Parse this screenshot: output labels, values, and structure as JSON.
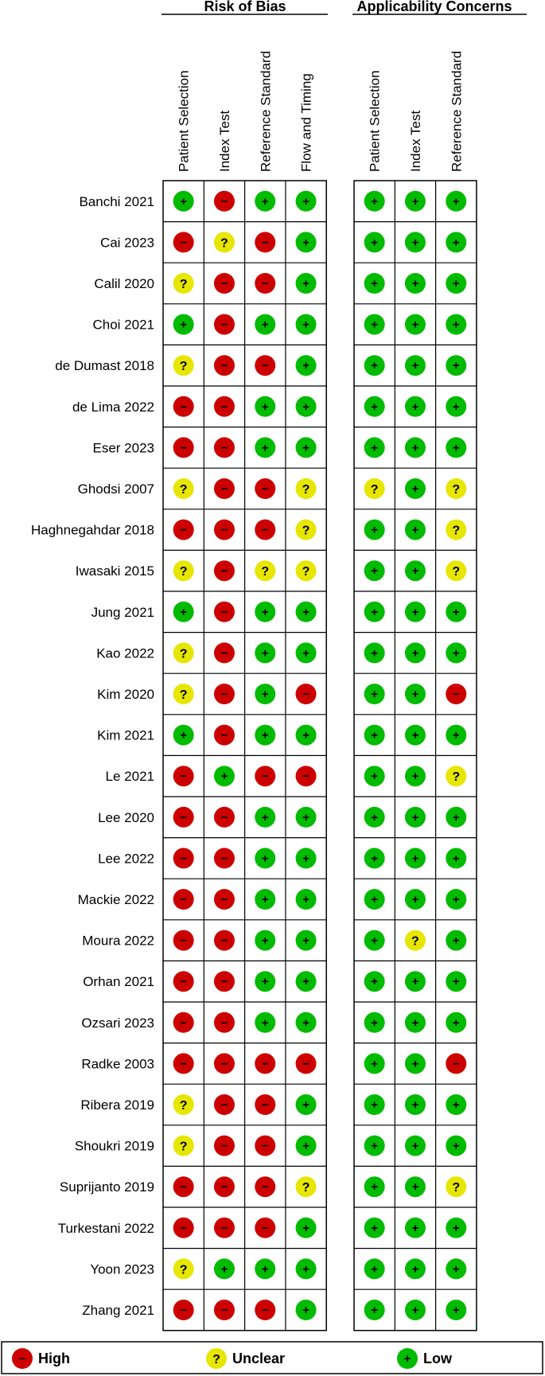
{
  "chart_data": {
    "type": "table",
    "groups": [
      {
        "title": "Risk of Bias",
        "columns": [
          "Patient Selection",
          "Index Test",
          "Reference Standard",
          "Flow and Timing"
        ]
      },
      {
        "title": "Applicability Concerns",
        "columns": [
          "Patient Selection",
          "Index Test",
          "Reference Standard"
        ]
      }
    ],
    "rows": [
      {
        "study": "Banchi 2021",
        "rob": [
          "low",
          "high",
          "low",
          "low"
        ],
        "app": [
          "low",
          "low",
          "low"
        ]
      },
      {
        "study": "Cai 2023",
        "rob": [
          "high",
          "unclear",
          "high",
          "low"
        ],
        "app": [
          "low",
          "low",
          "low"
        ]
      },
      {
        "study": "Calil 2020",
        "rob": [
          "unclear",
          "high",
          "high",
          "low"
        ],
        "app": [
          "low",
          "low",
          "low"
        ]
      },
      {
        "study": "Choi 2021",
        "rob": [
          "low",
          "high",
          "low",
          "low"
        ],
        "app": [
          "low",
          "low",
          "low"
        ]
      },
      {
        "study": "de Dumast 2018",
        "rob": [
          "unclear",
          "high",
          "high",
          "low"
        ],
        "app": [
          "low",
          "low",
          "low"
        ]
      },
      {
        "study": "de Lima 2022",
        "rob": [
          "high",
          "high",
          "low",
          "low"
        ],
        "app": [
          "low",
          "low",
          "low"
        ]
      },
      {
        "study": "Eser 2023",
        "rob": [
          "high",
          "high",
          "low",
          "low"
        ],
        "app": [
          "low",
          "low",
          "low"
        ]
      },
      {
        "study": "Ghodsi 2007",
        "rob": [
          "unclear",
          "high",
          "high",
          "unclear"
        ],
        "app": [
          "unclear",
          "low",
          "unclear"
        ]
      },
      {
        "study": "Haghnegahdar 2018",
        "rob": [
          "high",
          "high",
          "high",
          "unclear"
        ],
        "app": [
          "low",
          "low",
          "unclear"
        ]
      },
      {
        "study": "Iwasaki 2015",
        "rob": [
          "unclear",
          "high",
          "unclear",
          "unclear"
        ],
        "app": [
          "low",
          "low",
          "unclear"
        ]
      },
      {
        "study": "Jung 2021",
        "rob": [
          "low",
          "high",
          "low",
          "low"
        ],
        "app": [
          "low",
          "low",
          "low"
        ]
      },
      {
        "study": "Kao 2022",
        "rob": [
          "unclear",
          "high",
          "low",
          "low"
        ],
        "app": [
          "low",
          "low",
          "low"
        ]
      },
      {
        "study": "Kim 2020",
        "rob": [
          "unclear",
          "high",
          "low",
          "high"
        ],
        "app": [
          "low",
          "low",
          "high"
        ]
      },
      {
        "study": "Kim 2021",
        "rob": [
          "low",
          "high",
          "low",
          "low"
        ],
        "app": [
          "low",
          "low",
          "low"
        ]
      },
      {
        "study": "Le 2021",
        "rob": [
          "high",
          "low",
          "high",
          "high"
        ],
        "app": [
          "low",
          "low",
          "unclear"
        ]
      },
      {
        "study": "Lee 2020",
        "rob": [
          "high",
          "high",
          "low",
          "low"
        ],
        "app": [
          "low",
          "low",
          "low"
        ]
      },
      {
        "study": "Lee 2022",
        "rob": [
          "high",
          "high",
          "low",
          "low"
        ],
        "app": [
          "low",
          "low",
          "low"
        ]
      },
      {
        "study": "Mackie 2022",
        "rob": [
          "high",
          "high",
          "low",
          "low"
        ],
        "app": [
          "low",
          "low",
          "low"
        ]
      },
      {
        "study": "Moura 2022",
        "rob": [
          "high",
          "high",
          "low",
          "low"
        ],
        "app": [
          "low",
          "unclear",
          "low"
        ]
      },
      {
        "study": "Orhan 2021",
        "rob": [
          "high",
          "high",
          "low",
          "low"
        ],
        "app": [
          "low",
          "low",
          "low"
        ]
      },
      {
        "study": "Ozsari 2023",
        "rob": [
          "high",
          "high",
          "low",
          "low"
        ],
        "app": [
          "low",
          "low",
          "low"
        ]
      },
      {
        "study": "Radke 2003",
        "rob": [
          "high",
          "high",
          "high",
          "high"
        ],
        "app": [
          "low",
          "low",
          "high"
        ]
      },
      {
        "study": "Ribera 2019",
        "rob": [
          "unclear",
          "high",
          "high",
          "low"
        ],
        "app": [
          "low",
          "low",
          "low"
        ]
      },
      {
        "study": "Shoukri 2019",
        "rob": [
          "unclear",
          "high",
          "high",
          "low"
        ],
        "app": [
          "low",
          "low",
          "low"
        ]
      },
      {
        "study": "Suprijanto 2019",
        "rob": [
          "high",
          "high",
          "high",
          "unclear"
        ],
        "app": [
          "low",
          "low",
          "unclear"
        ]
      },
      {
        "study": "Turkestani 2022",
        "rob": [
          "high",
          "high",
          "high",
          "low"
        ],
        "app": [
          "low",
          "low",
          "low"
        ]
      },
      {
        "study": "Yoon 2023",
        "rob": [
          "unclear",
          "low",
          "low",
          "low"
        ],
        "app": [
          "low",
          "low",
          "low"
        ]
      },
      {
        "study": "Zhang 2021",
        "rob": [
          "high",
          "high",
          "high",
          "low"
        ],
        "app": [
          "low",
          "low",
          "low"
        ]
      }
    ],
    "legend": [
      {
        "key": "high",
        "label": "High",
        "symbol": "−"
      },
      {
        "key": "unclear",
        "label": "Unclear",
        "symbol": "?"
      },
      {
        "key": "low",
        "label": "Low",
        "symbol": "+"
      }
    ],
    "colors": {
      "high": "#cc0000",
      "unclear": "#e6e600",
      "low": "#00bb00"
    }
  }
}
